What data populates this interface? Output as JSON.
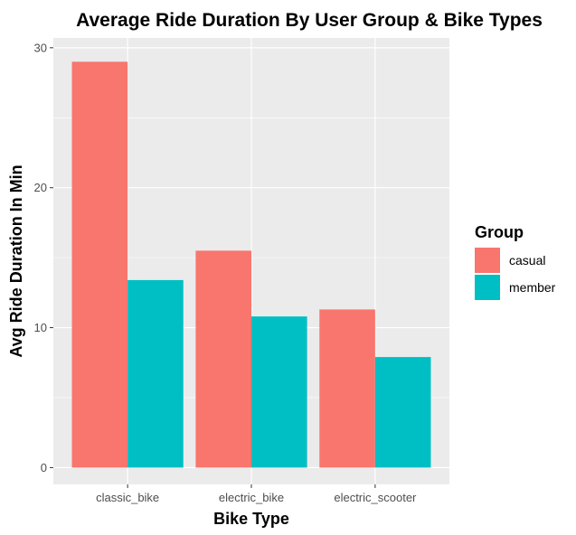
{
  "chart_data": {
    "type": "bar",
    "title": "Average Ride Duration By User Group & Bike Types",
    "xlabel": "Bike Type",
    "ylabel": "Avg Ride Duration In Min",
    "categories": [
      "classic_bike",
      "electric_bike",
      "electric_scooter"
    ],
    "series": [
      {
        "name": "casual",
        "color": "#F8766D",
        "values": [
          29.0,
          15.5,
          11.3
        ]
      },
      {
        "name": "member",
        "color": "#00BFC4",
        "values": [
          13.4,
          10.8,
          7.9
        ]
      }
    ],
    "ylim": [
      -1.2,
      30.7
    ],
    "yticks": [
      0,
      10,
      20,
      30
    ],
    "grid": true,
    "legend": {
      "title": "Group",
      "position": "right"
    },
    "panel_background": "#EBEBEB",
    "grid_color": "#FFFFFF"
  }
}
